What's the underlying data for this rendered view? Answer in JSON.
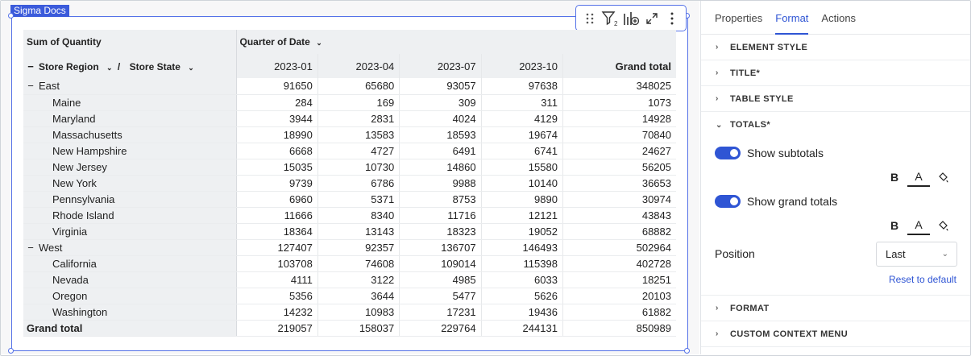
{
  "canvas": {
    "tag": "Sigma Docs"
  },
  "table": {
    "measure": "Sum of Quantity",
    "column_field": "Quarter of Date",
    "row_field_1": "Store Region",
    "row_field_sep": "/",
    "row_field_2": "Store State",
    "columns": [
      "2023-01",
      "2023-04",
      "2023-07",
      "2023-10"
    ],
    "grand_total_label": "Grand total",
    "rows": [
      {
        "level": 1,
        "label": "East",
        "values": [
          "91650",
          "65680",
          "93057",
          "97638"
        ],
        "total": "348025"
      },
      {
        "level": 2,
        "label": "Maine",
        "values": [
          "284",
          "169",
          "309",
          "311"
        ],
        "total": "1073"
      },
      {
        "level": 2,
        "label": "Maryland",
        "values": [
          "3944",
          "2831",
          "4024",
          "4129"
        ],
        "total": "14928"
      },
      {
        "level": 2,
        "label": "Massachusetts",
        "values": [
          "18990",
          "13583",
          "18593",
          "19674"
        ],
        "total": "70840"
      },
      {
        "level": 2,
        "label": "New Hampshire",
        "values": [
          "6668",
          "4727",
          "6491",
          "6741"
        ],
        "total": "24627"
      },
      {
        "level": 2,
        "label": "New Jersey",
        "values": [
          "15035",
          "10730",
          "14860",
          "15580"
        ],
        "total": "56205"
      },
      {
        "level": 2,
        "label": "New York",
        "values": [
          "9739",
          "6786",
          "9988",
          "10140"
        ],
        "total": "36653"
      },
      {
        "level": 2,
        "label": "Pennsylvania",
        "values": [
          "6960",
          "5371",
          "8753",
          "9890"
        ],
        "total": "30974"
      },
      {
        "level": 2,
        "label": "Rhode Island",
        "values": [
          "11666",
          "8340",
          "11716",
          "12121"
        ],
        "total": "43843"
      },
      {
        "level": 2,
        "label": "Virginia",
        "values": [
          "18364",
          "13143",
          "18323",
          "19052"
        ],
        "total": "68882"
      },
      {
        "level": 1,
        "label": "West",
        "values": [
          "127407",
          "92357",
          "136707",
          "146493"
        ],
        "total": "502964"
      },
      {
        "level": 2,
        "label": "California",
        "values": [
          "103708",
          "74608",
          "109014",
          "115398"
        ],
        "total": "402728"
      },
      {
        "level": 2,
        "label": "Nevada",
        "values": [
          "4111",
          "3122",
          "4985",
          "6033"
        ],
        "total": "18251"
      },
      {
        "level": 2,
        "label": "Oregon",
        "values": [
          "5356",
          "3644",
          "5477",
          "5626"
        ],
        "total": "20103"
      },
      {
        "level": 2,
        "label": "Washington",
        "values": [
          "14232",
          "10983",
          "17231",
          "19436"
        ],
        "total": "61882"
      }
    ],
    "grand_row": {
      "label": "Grand total",
      "values": [
        "219057",
        "158037",
        "229764",
        "244131"
      ],
      "total": "850989"
    }
  },
  "panel": {
    "tabs": [
      "Properties",
      "Format",
      "Actions"
    ],
    "active_tab": "Format",
    "sections_top": [
      "ELEMENT STYLE",
      "TITLE*",
      "TABLE STYLE"
    ],
    "totals_title": "TOTALS*",
    "show_subtotals": "Show subtotals",
    "show_grand_totals": "Show grand totals",
    "bold_glyph": "B",
    "color_glyph": "A",
    "position_label": "Position",
    "position_value": "Last",
    "reset_label": "Reset to default",
    "sections_bottom": [
      "FORMAT",
      "CUSTOM CONTEXT MENU"
    ]
  },
  "colors": {
    "accent": "#2f55d4",
    "selection": "#5572e8"
  }
}
